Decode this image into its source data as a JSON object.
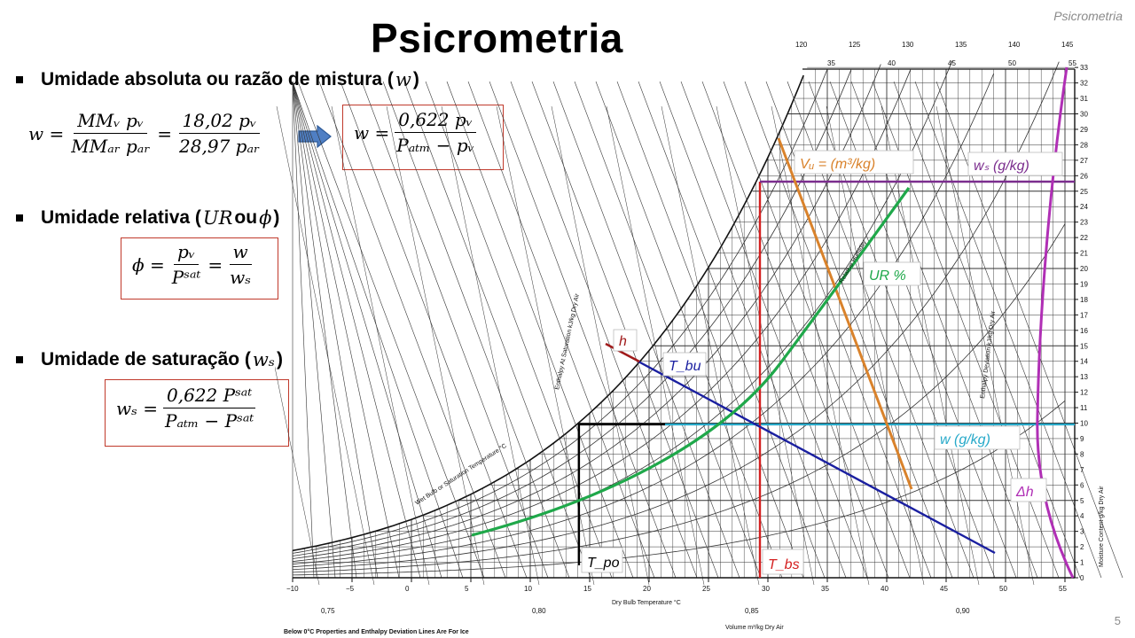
{
  "header_tag": "Psicrometria",
  "page_number": "5",
  "title": "Psicrometria",
  "sections": {
    "absolute": {
      "label": "Umidade absoluta ou razão de mistura (",
      "symbol": "w",
      "close": ")",
      "eq_lhs": "w =",
      "frac1_num": "MMᵥ pᵥ",
      "frac1_den": "MMₐᵣ pₐᵣ",
      "eq_mid": "=",
      "frac2_num": "18,02 pᵥ",
      "frac2_den": "28,97 pₐᵣ",
      "boxed_lhs": "w =",
      "boxed_num": "0,622 pᵥ",
      "boxed_den": "Pₐₜₘ − pᵥ"
    },
    "relative": {
      "label": "Umidade relativa (",
      "symbol": "UR",
      "mid": " ou ",
      "symbol2": "ϕ",
      "close": ")",
      "eq_lhs": "ϕ =",
      "frac1_num": "pᵥ",
      "frac1_den": "Pˢᵃᵗ",
      "eq_mid": "=",
      "frac2_num": "w",
      "frac2_den": "wₛ"
    },
    "saturation": {
      "label": "Umidade de saturação (",
      "symbol": "wₛ",
      "close": ")",
      "eq_lhs": "wₛ =",
      "frac_num": "0,622 Pˢᵃᵗ",
      "frac_den": "Pₐₜₘ − Pˢᵃᵗ"
    }
  },
  "chart": {
    "annotations": {
      "vu": "Vᵤ = (m³/kg)",
      "ws": "wₛ (g/kg)",
      "ur": "UR %",
      "h": "h",
      "tbu": "T_bu",
      "w": "w (g/kg)",
      "dh": "Δh",
      "tpo": "T_po",
      "tbs": "T_bs"
    },
    "x_axis_label": "Dry Bulb Temperature °C",
    "x_ticks": [
      "−10",
      "−5",
      "0",
      "5",
      "10",
      "15",
      "20",
      "25",
      "30",
      "35",
      "40",
      "45",
      "50",
      "55"
    ],
    "y_axis_label": "Moisture Content g/kg Dry Air",
    "y_ticks": [
      "0",
      "1",
      "2",
      "3",
      "4",
      "5",
      "6",
      "7",
      "8",
      "9",
      "10",
      "11",
      "12",
      "13",
      "14",
      "15",
      "16",
      "17",
      "18",
      "19",
      "20",
      "21",
      "22",
      "23",
      "24",
      "25",
      "26",
      "27",
      "28",
      "29",
      "30",
      "31",
      "32",
      "33"
    ],
    "top_ticks": [
      "120",
      "125",
      "130",
      "135",
      "140",
      "145"
    ],
    "top_ticks2": [
      "35",
      "40",
      "45",
      "50",
      "55"
    ],
    "volume_ticks": [
      "0,75",
      "0,80",
      "0,85",
      "0,90"
    ],
    "volume_label": "Volume m³/kg Dry Air",
    "footnote": "Below 0°C Properties and Enthalpy Deviation Lines Are For Ice",
    "enthalpy_label": "Enthalpy At Saturation kJ/kg Dry Air",
    "wetbulb_label": "Wet Bulb or Saturation Temperature °C",
    "rh_label": "Relative Humidity",
    "deviation_label": "Enthalpy Deviation kJ/kg Dry Air",
    "colors": {
      "orange": "#d9822b",
      "purple": "#7b2d8e",
      "magenta": "#b02fb5",
      "green": "#1fa84a",
      "blue": "#1a1fa0",
      "red": "#d42020",
      "cyan": "#27a9c9",
      "darkred": "#a01a1a",
      "grid": "#333333"
    }
  }
}
